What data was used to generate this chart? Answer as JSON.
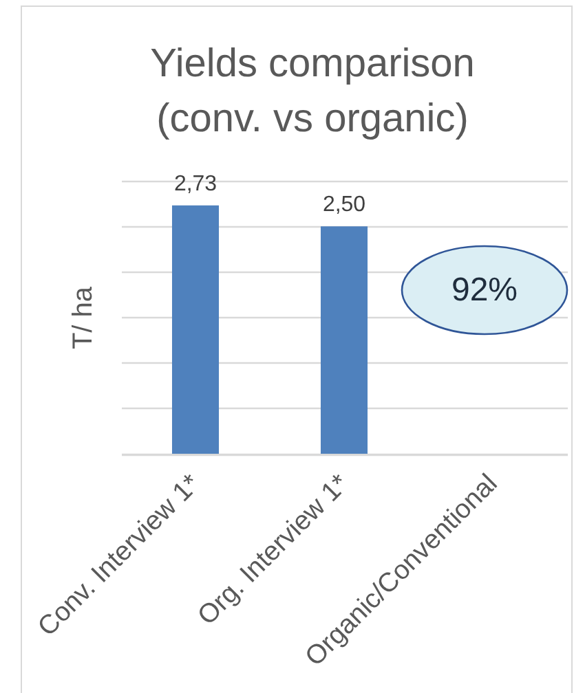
{
  "chart_data": {
    "type": "bar",
    "title": "Yields comparison\n(conv. vs organic)",
    "ylabel": "T/ ha",
    "categories": [
      "Conv. Interview 1*",
      "Org. Interview 1*",
      "Organic/Conventional"
    ],
    "values": [
      2.73,
      2.5,
      null
    ],
    "color": "#4f81bd",
    "value_labels": [
      "2,73",
      "2,50",
      null
    ],
    "ylim": [
      0,
      3
    ],
    "yticks": [
      {
        "value": 0,
        "label": null
      },
      {
        "value": 0.5,
        "label": null
      },
      {
        "value": 1,
        "label": null
      },
      {
        "value": 1.5,
        "label": null
      },
      {
        "value": 2,
        "label": null
      },
      {
        "value": 2.5,
        "label": null
      },
      {
        "value": 3,
        "label": null
      }
    ],
    "grid": "y",
    "tick_labels": "x",
    "annotations": [
      "92%"
    ]
  }
}
